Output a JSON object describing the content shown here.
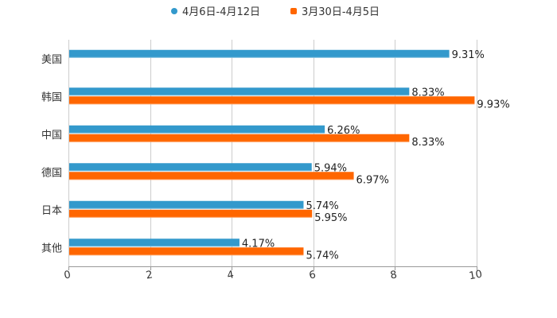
{
  "chart_data": {
    "type": "bar",
    "orientation": "horizontal",
    "title": "",
    "xlabel": "",
    "ylabel": "",
    "categories": [
      "美国",
      "韩国",
      "中国",
      "德国",
      "日本",
      "其他"
    ],
    "series": [
      {
        "name": "4月6日-4月12日",
        "color": "#3399cc",
        "values": [
          9.31,
          8.33,
          6.26,
          5.94,
          5.74,
          4.17
        ],
        "labels": [
          "9.31%",
          "8.33%",
          "6.26%",
          "5.94%",
          "5.74%",
          "4.17%"
        ]
      },
      {
        "name": "3月30日-4月5日",
        "color": "#ff6600",
        "values": [
          null,
          9.93,
          8.33,
          6.97,
          5.95,
          5.74
        ],
        "labels": [
          "",
          "9.93%",
          "8.33%",
          "6.97%",
          "5.95%",
          "5.74%"
        ]
      }
    ],
    "xlim": [
      0,
      10
    ],
    "xticks": [
      "0",
      "2",
      "4",
      "6",
      "8",
      "10"
    ],
    "grid": true,
    "legend_position": "top"
  },
  "legend": {
    "items": [
      {
        "label": "4月6日-4月12日",
        "color": "#3399cc",
        "marker": "circle"
      },
      {
        "label": "3月30日-4月5日",
        "color": "#ff6600",
        "marker": "square"
      }
    ]
  }
}
